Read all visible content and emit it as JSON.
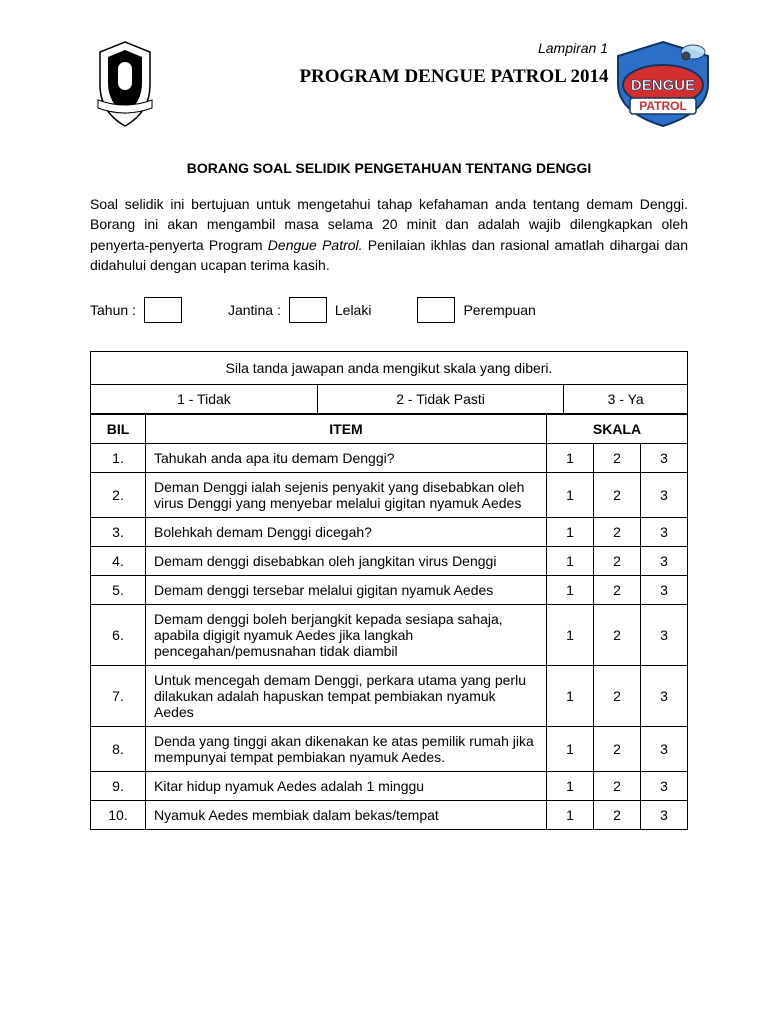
{
  "annotation": "Lampiran 1",
  "title": "PROGRAM DENGUE PATROL 2014",
  "subtitle": "BORANG SOAL SELIDIK PENGETAHUAN TENTANG DENGGI",
  "intro_a": "Soal selidik ini bertujuan untuk mengetahui tahap kefahaman anda tentang demam Denggi. Borang ini akan mengambil masa selama 20 minit dan adalah wajib dilengkapkan oleh penyerta-penyerta Program ",
  "intro_ital": "Dengue Patrol.",
  "intro_b": " Penilaian ikhlas dan rasional amatlah dihargai dan didahului dengan ucapan terima kasih.",
  "demog": {
    "year": "Tahun :",
    "gender": "Jantina :",
    "male": "Lelaki",
    "female": "Perempuan"
  },
  "instruction": "Sila tanda jawapan anda mengikut skala yang diberi.",
  "legend": {
    "l1": "1 - Tidak",
    "l2": "2 - Tidak Pasti",
    "l3": "3 - Ya"
  },
  "headers": {
    "bil": "BIL",
    "item": "ITEM",
    "skala": "SKALA"
  },
  "rows": [
    {
      "n": "1.",
      "item": "Tahukah anda apa itu demam Denggi?",
      "s": [
        "1",
        "2",
        "3"
      ]
    },
    {
      "n": "2.",
      "item": "Deman Denggi ialah sejenis penyakit yang disebabkan oleh virus Denggi yang menyebar melalui gigitan nyamuk Aedes",
      "s": [
        "1",
        "2",
        "3"
      ]
    },
    {
      "n": "3.",
      "item": "Bolehkah demam Denggi dicegah?",
      "s": [
        "1",
        "2",
        "3"
      ]
    },
    {
      "n": "4.",
      "item": "Demam denggi disebabkan oleh jangkitan virus Denggi",
      "s": [
        "1",
        "2",
        "3"
      ]
    },
    {
      "n": "5.",
      "item": "Demam denggi tersebar melalui gigitan nyamuk Aedes",
      "s": [
        "1",
        "2",
        "3"
      ]
    },
    {
      "n": "6.",
      "item": "Demam denggi boleh berjangkit kepada sesiapa sahaja, apabila digigit nyamuk Aedes jika langkah pencegahan/pemusnahan tidak diambil",
      "s": [
        "1",
        "2",
        "3"
      ]
    },
    {
      "n": "7.",
      "item": "Untuk mencegah demam Denggi, perkara utama yang perlu dilakukan adalah hapuskan tempat pembiakan nyamuk Aedes",
      "s": [
        "1",
        "2",
        "3"
      ]
    },
    {
      "n": "8.",
      "item": "Denda yang tinggi akan dikenakan ke atas pemilik rumah jika mempunyai tempat pembiakan nyamuk Aedes.",
      "s": [
        "1",
        "2",
        "3"
      ]
    },
    {
      "n": "9.",
      "item": "Kitar hidup nyamuk Aedes adalah 1 minggu",
      "s": [
        "1",
        "2",
        "3"
      ]
    },
    {
      "n": "10.",
      "item": "Nyamuk Aedes membiak dalam bekas/tempat",
      "s": [
        "1",
        "2",
        "3"
      ]
    }
  ],
  "logo": {
    "top": "DENGUE",
    "bottom": "PATROL"
  }
}
